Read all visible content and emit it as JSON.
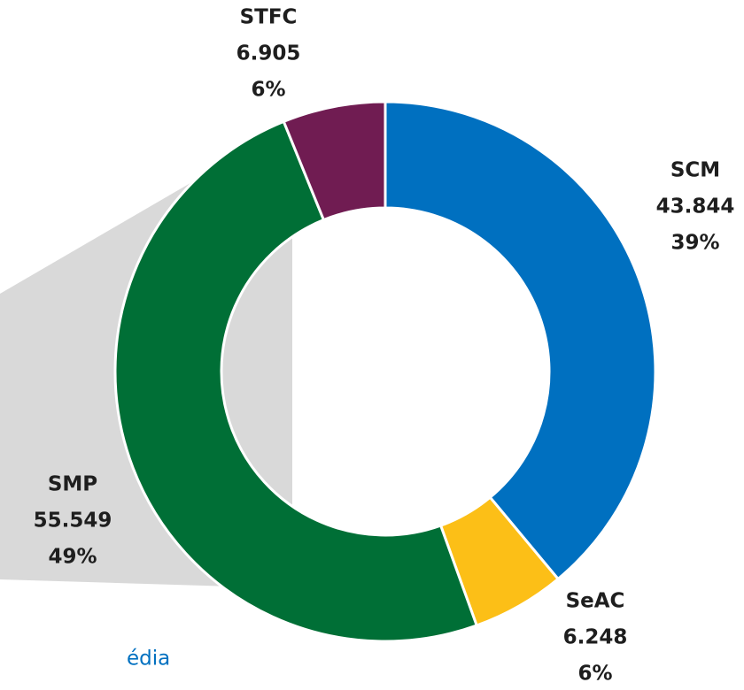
{
  "chart_data": {
    "type": "donut",
    "categories": [
      "SCM",
      "SeAC",
      "SMP",
      "STFC"
    ],
    "values": [
      43844,
      6248,
      55549,
      6905
    ],
    "value_labels": [
      "43.844",
      "6.248",
      "55.549",
      "6.905"
    ],
    "percents": [
      39,
      6,
      49,
      6
    ],
    "percent_labels": [
      "39%",
      "6%",
      "49%",
      "6%"
    ],
    "colors": [
      "#0070c0",
      "#fcbf17",
      "#006f36",
      "#701c52"
    ],
    "annotation": "édia"
  }
}
